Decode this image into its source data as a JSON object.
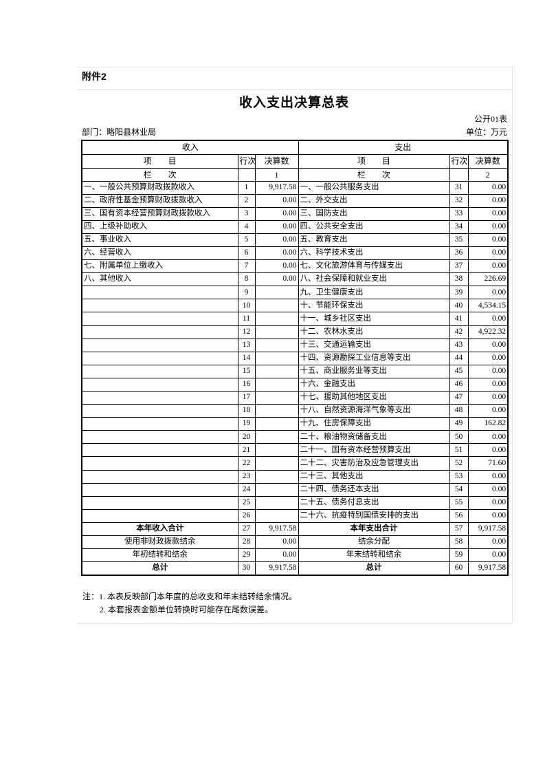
{
  "page": {
    "attachment_label": "附件2",
    "title": "收入支出决算总表",
    "table_code": "公开01表",
    "department_label": "部门：略阳县林业局",
    "unit_label": "单位：万元"
  },
  "table": {
    "income_section_header": "收入",
    "expense_section_header": "支出",
    "col_item": "项　　目",
    "col_line": "行次",
    "col_amount": "决算数",
    "col_index_label": "栏　　次",
    "income_col_index": "1",
    "expense_col_index": "2",
    "income_rows": [
      {
        "item": "一、一般公共预算财政拨款收入",
        "line": "1",
        "amount": "9,917.58"
      },
      {
        "item": "二、政府性基金预算财政拨款收入",
        "line": "2",
        "amount": "0.00"
      },
      {
        "item": "三、国有资本经营预算财政拨款收入",
        "line": "3",
        "amount": "0.00"
      },
      {
        "item": "四、上级补助收入",
        "line": "4",
        "amount": "0.00"
      },
      {
        "item": "五、事业收入",
        "line": "5",
        "amount": "0.00"
      },
      {
        "item": "六、经营收入",
        "line": "6",
        "amount": "0.00"
      },
      {
        "item": "七、附属单位上缴收入",
        "line": "7",
        "amount": "0.00"
      },
      {
        "item": "八、其他收入",
        "line": "8",
        "amount": "0.00"
      },
      {
        "item": "",
        "line": "9",
        "amount": ""
      },
      {
        "item": "",
        "line": "10",
        "amount": ""
      },
      {
        "item": "",
        "line": "11",
        "amount": ""
      },
      {
        "item": "",
        "line": "12",
        "amount": ""
      },
      {
        "item": "",
        "line": "13",
        "amount": ""
      },
      {
        "item": "",
        "line": "14",
        "amount": ""
      },
      {
        "item": "",
        "line": "15",
        "amount": ""
      },
      {
        "item": "",
        "line": "16",
        "amount": ""
      },
      {
        "item": "",
        "line": "17",
        "amount": ""
      },
      {
        "item": "",
        "line": "18",
        "amount": ""
      },
      {
        "item": "",
        "line": "19",
        "amount": ""
      },
      {
        "item": "",
        "line": "20",
        "amount": ""
      },
      {
        "item": "",
        "line": "21",
        "amount": ""
      },
      {
        "item": "",
        "line": "22",
        "amount": ""
      },
      {
        "item": "",
        "line": "23",
        "amount": ""
      },
      {
        "item": "",
        "line": "24",
        "amount": ""
      },
      {
        "item": "",
        "line": "25",
        "amount": ""
      },
      {
        "item": "",
        "line": "26",
        "amount": ""
      },
      {
        "item": "本年收入合计",
        "line": "27",
        "amount": "9,917.58",
        "bold": true,
        "center": true
      },
      {
        "item": "使用非财政拨款结余",
        "line": "28",
        "amount": "0.00",
        "center": true
      },
      {
        "item": "年初结转和结余",
        "line": "29",
        "amount": "0.00",
        "center": true
      },
      {
        "item": "总计",
        "line": "30",
        "amount": "9,917.58",
        "bold": true,
        "center": true
      }
    ],
    "expense_rows": [
      {
        "item": "一、一般公共服务支出",
        "line": "31",
        "amount": "0.00"
      },
      {
        "item": "二、外交支出",
        "line": "32",
        "amount": "0.00"
      },
      {
        "item": "三、国防支出",
        "line": "33",
        "amount": "0.00"
      },
      {
        "item": "四、公共安全支出",
        "line": "34",
        "amount": "0.00"
      },
      {
        "item": "五、教育支出",
        "line": "35",
        "amount": "0.00"
      },
      {
        "item": "六、科学技术支出",
        "line": "36",
        "amount": "0.00"
      },
      {
        "item": "七、文化旅游体育与传媒支出",
        "line": "37",
        "amount": "0.00"
      },
      {
        "item": "八、社会保障和就业支出",
        "line": "38",
        "amount": "226.69"
      },
      {
        "item": "九、卫生健康支出",
        "line": "39",
        "amount": "0.00"
      },
      {
        "item": "十、节能环保支出",
        "line": "40",
        "amount": "4,534.15"
      },
      {
        "item": "十一、城乡社区支出",
        "line": "41",
        "amount": "0.00"
      },
      {
        "item": "十二、农林水支出",
        "line": "42",
        "amount": "4,922.32"
      },
      {
        "item": "十三、交通运输支出",
        "line": "43",
        "amount": "0.00"
      },
      {
        "item": "十四、资源勘探工业信息等支出",
        "line": "44",
        "amount": "0.00"
      },
      {
        "item": "十五、商业服务业等支出",
        "line": "45",
        "amount": "0.00"
      },
      {
        "item": "十六、金融支出",
        "line": "46",
        "amount": "0.00"
      },
      {
        "item": "十七、援助其他地区支出",
        "line": "47",
        "amount": "0.00"
      },
      {
        "item": "十八、自然资源海洋气象等支出",
        "line": "48",
        "amount": "0.00"
      },
      {
        "item": "十九、住房保障支出",
        "line": "49",
        "amount": "162.82"
      },
      {
        "item": "二十、粮油物资储备支出",
        "line": "50",
        "amount": "0.00"
      },
      {
        "item": "二十一、国有资本经营预算支出",
        "line": "51",
        "amount": "0.00"
      },
      {
        "item": "二十二、灾害防治及应急管理支出",
        "line": "52",
        "amount": "71.60"
      },
      {
        "item": "二十三、其他支出",
        "line": "53",
        "amount": "0.00"
      },
      {
        "item": "二十四、债务还本支出",
        "line": "54",
        "amount": "0.00"
      },
      {
        "item": "二十五、债务付息支出",
        "line": "55",
        "amount": "0.00"
      },
      {
        "item": "二十六、抗疫特别国债安排的支出",
        "line": "56",
        "amount": "0.00"
      },
      {
        "item": "本年支出合计",
        "line": "57",
        "amount": "9,917.58",
        "bold": true,
        "center": true
      },
      {
        "item": "结余分配",
        "line": "58",
        "amount": "0.00",
        "center": true
      },
      {
        "item": "年末结转和结余",
        "line": "59",
        "amount": "0.00",
        "center": true
      },
      {
        "item": "总计",
        "line": "60",
        "amount": "9,917.58",
        "bold": true,
        "center": true
      }
    ]
  },
  "notes": {
    "line1": "注：1. 本表反映部门本年度的总收支和年末结转结余情况。",
    "line2": "2. 本套报表金额单位转换时可能存在尾数误差。"
  }
}
